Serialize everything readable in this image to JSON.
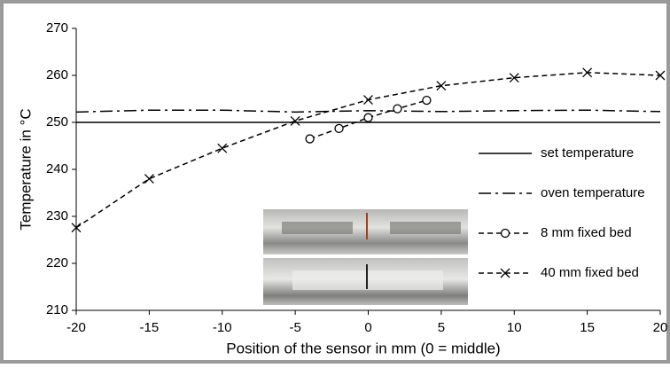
{
  "chart_data": {
    "type": "line",
    "x_label": "Position of the sensor in mm (0 = middle)",
    "y_label": "Temperature in °C",
    "xlim": [
      -20,
      20
    ],
    "xticks": [
      -20,
      -15,
      -10,
      -5,
      0,
      5,
      10,
      15,
      20
    ],
    "ylim": [
      210,
      270
    ],
    "yticks": [
      210,
      220,
      230,
      240,
      250,
      260,
      270
    ],
    "grid": false,
    "legend": "right",
    "series": [
      {
        "name": "set temperature",
        "color": "#000000",
        "dash": "none",
        "marker": "none",
        "x": [
          -20,
          20
        ],
        "values": [
          250,
          250
        ]
      },
      {
        "name": "oven temperature",
        "color": "#000000",
        "dash": "14,5,3,5",
        "marker": "none",
        "x": [
          -20,
          -15,
          -10,
          -5,
          0,
          5,
          10,
          15,
          20
        ],
        "values": [
          252.2,
          252.6,
          252.6,
          252.2,
          252.5,
          252.3,
          252.5,
          252.6,
          252.3
        ]
      },
      {
        "name": "8 mm fixed bed",
        "color": "#000000",
        "dash": "6,4",
        "marker": "circle",
        "x": [
          -4,
          -2,
          0,
          2,
          4
        ],
        "values": [
          246.5,
          248.7,
          251,
          252.9,
          254.7
        ]
      },
      {
        "name": "40 mm fixed bed",
        "color": "#000000",
        "dash": "6,4",
        "marker": "x",
        "x": [
          -20,
          -15,
          -10,
          -5,
          0,
          5,
          10,
          15,
          20
        ],
        "values": [
          227.6,
          238,
          244.5,
          250.3,
          254.8,
          257.8,
          259.5,
          260.6,
          260
        ]
      }
    ]
  }
}
